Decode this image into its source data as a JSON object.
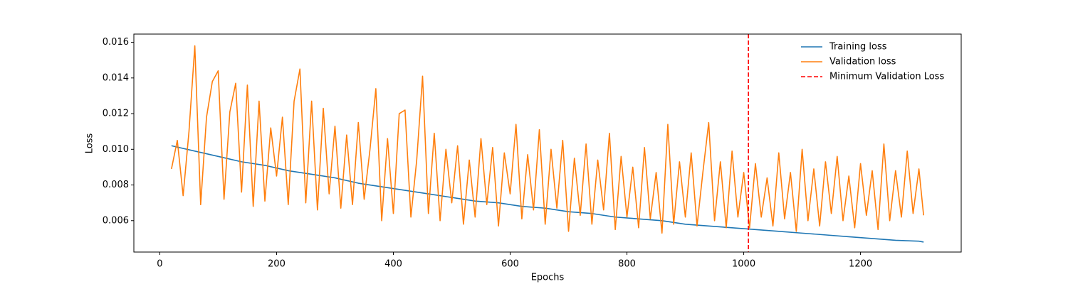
{
  "chart_data": {
    "type": "line",
    "xlabel": "Epochs",
    "ylabel": "Loss",
    "xlim": [
      -44.4,
      1372.4
    ],
    "ylim": [
      0.00424,
      0.01646
    ],
    "xticks": [
      0,
      200,
      400,
      600,
      800,
      1000,
      1200
    ],
    "yticks": [
      0.006,
      0.008,
      {
        "value": 0.01,
        "label": "0.010"
      },
      0.012,
      0.014,
      0.016
    ],
    "legend": "upper right",
    "series": [
      {
        "name": "Training loss",
        "color": "#1f77b4",
        "x": [
          20,
          60,
          100,
          140,
          180,
          220,
          260,
          300,
          340,
          380,
          420,
          460,
          500,
          540,
          580,
          620,
          660,
          700,
          740,
          780,
          820,
          860,
          900,
          940,
          980,
          1020,
          1060,
          1100,
          1140,
          1180,
          1220,
          1260,
          1300,
          1308
        ],
        "values": [
          0.0102,
          0.0099,
          0.0096,
          0.0093,
          0.0091,
          0.0088,
          0.0086,
          0.0084,
          0.0081,
          0.0079,
          0.0077,
          0.0075,
          0.0073,
          0.0071,
          0.007,
          0.0068,
          0.0067,
          0.0065,
          0.0064,
          0.0062,
          0.0061,
          0.006,
          0.0058,
          0.0057,
          0.0056,
          0.0055,
          0.0054,
          0.0053,
          0.0052,
          0.0051,
          0.005,
          0.0049,
          0.00485,
          0.0048
        ]
      },
      {
        "name": "Validation loss",
        "color": "#ff7f0e",
        "x": [
          20,
          30,
          40,
          50,
          60,
          70,
          80,
          90,
          100,
          110,
          120,
          130,
          140,
          150,
          160,
          170,
          180,
          190,
          200,
          210,
          220,
          230,
          240,
          250,
          260,
          270,
          280,
          290,
          300,
          310,
          320,
          330,
          340,
          350,
          360,
          370,
          380,
          390,
          400,
          410,
          420,
          430,
          440,
          450,
          460,
          470,
          480,
          490,
          500,
          510,
          520,
          530,
          540,
          550,
          560,
          570,
          580,
          590,
          600,
          610,
          620,
          630,
          640,
          650,
          660,
          670,
          680,
          690,
          700,
          710,
          720,
          730,
          740,
          750,
          760,
          770,
          780,
          790,
          800,
          810,
          820,
          830,
          840,
          850,
          860,
          870,
          880,
          890,
          900,
          910,
          920,
          930,
          940,
          950,
          960,
          970,
          980,
          990,
          1000,
          1010,
          1020,
          1030,
          1040,
          1050,
          1060,
          1070,
          1080,
          1090,
          1100,
          1110,
          1120,
          1130,
          1140,
          1150,
          1160,
          1170,
          1180,
          1190,
          1200,
          1210,
          1220,
          1230,
          1240,
          1250,
          1260,
          1270,
          1280,
          1290,
          1300,
          1308
        ],
        "values": [
          0.0089,
          0.0105,
          0.0074,
          0.011,
          0.0158,
          0.0069,
          0.0118,
          0.0138,
          0.0144,
          0.0072,
          0.0121,
          0.0137,
          0.0076,
          0.0136,
          0.0068,
          0.0127,
          0.0071,
          0.0112,
          0.0085,
          0.0118,
          0.0069,
          0.0127,
          0.0145,
          0.007,
          0.0127,
          0.0066,
          0.0123,
          0.0075,
          0.0113,
          0.0067,
          0.0108,
          0.0069,
          0.0115,
          0.0072,
          0.01,
          0.0134,
          0.006,
          0.0106,
          0.0064,
          0.012,
          0.0122,
          0.0062,
          0.0094,
          0.0141,
          0.0064,
          0.0109,
          0.006,
          0.01,
          0.007,
          0.0102,
          0.0058,
          0.0094,
          0.0062,
          0.0106,
          0.0069,
          0.0101,
          0.0057,
          0.0098,
          0.0075,
          0.0114,
          0.0061,
          0.0097,
          0.0066,
          0.0111,
          0.0058,
          0.01,
          0.0067,
          0.0105,
          0.0054,
          0.0095,
          0.0063,
          0.0103,
          0.0058,
          0.0094,
          0.0066,
          0.0109,
          0.0055,
          0.0096,
          0.0062,
          0.009,
          0.0056,
          0.0101,
          0.0061,
          0.0087,
          0.0053,
          0.0114,
          0.0058,
          0.0093,
          0.0062,
          0.0098,
          0.0057,
          0.0087,
          0.0115,
          0.006,
          0.0093,
          0.0056,
          0.0099,
          0.0062,
          0.0087,
          0.0056,
          0.0092,
          0.0062,
          0.0084,
          0.0057,
          0.0098,
          0.0061,
          0.0087,
          0.0054,
          0.01,
          0.006,
          0.0089,
          0.0057,
          0.0093,
          0.0064,
          0.0096,
          0.006,
          0.0085,
          0.0056,
          0.0092,
          0.0063,
          0.0088,
          0.0055,
          0.0103,
          0.006,
          0.0088,
          0.0062,
          0.0099,
          0.0064,
          0.0089,
          0.0063
        ]
      }
    ],
    "vlines": [
      {
        "name": "Minimum Validation Loss",
        "color": "#ff0000",
        "x": 1008
      }
    ]
  }
}
